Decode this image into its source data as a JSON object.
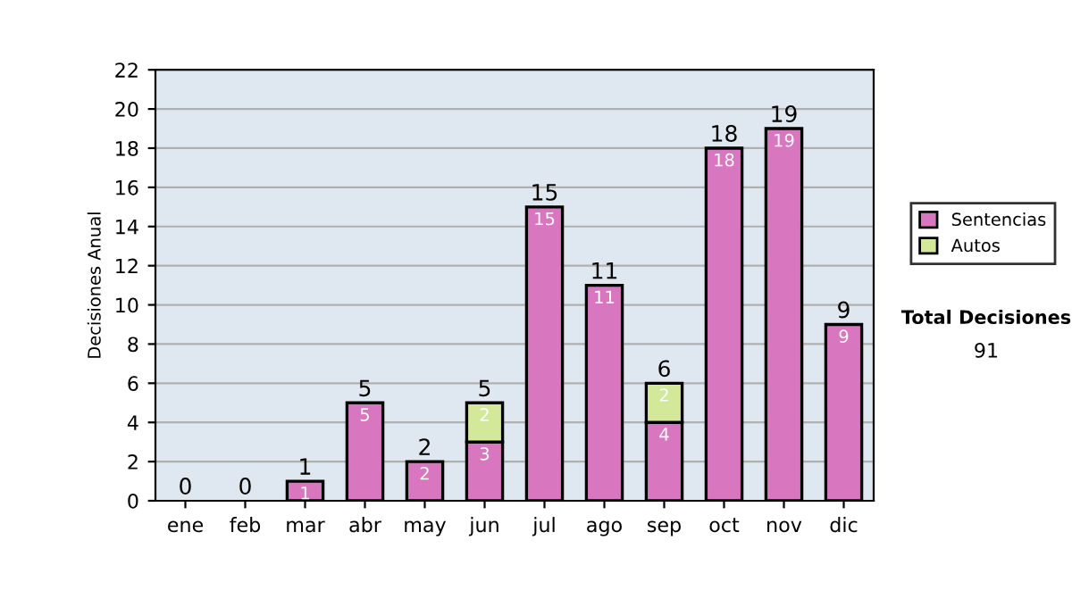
{
  "chart_data": {
    "type": "bar",
    "ylabel": "Decisiones Anual",
    "categories": [
      "ene",
      "feb",
      "mar",
      "abr",
      "may",
      "jun",
      "jul",
      "ago",
      "sep",
      "oct",
      "nov",
      "dic"
    ],
    "stacked": true,
    "series": [
      {
        "name": "Sentencias",
        "color": "#d877c0",
        "values": [
          0,
          0,
          1,
          5,
          2,
          3,
          15,
          11,
          4,
          18,
          19,
          9
        ],
        "value_labels": [
          null,
          null,
          "1",
          "5",
          "2",
          "3",
          "15",
          "11",
          "4",
          "18",
          "19",
          "9"
        ]
      },
      {
        "name": "Autos",
        "color": "#d4e89a",
        "values": [
          0,
          0,
          0,
          0,
          0,
          2,
          0,
          0,
          2,
          0,
          0,
          0
        ],
        "value_labels": [
          null,
          null,
          null,
          null,
          null,
          "2",
          null,
          null,
          "2",
          null,
          null,
          null
        ]
      }
    ],
    "totals": [
      "0",
      "0",
      "1",
      "5",
      "2",
      "5",
      "15",
      "11",
      "6",
      "18",
      "19",
      "9"
    ],
    "ylim": [
      0,
      22
    ],
    "yticks": [
      0,
      2,
      4,
      6,
      8,
      10,
      12,
      14,
      16,
      18,
      20,
      22
    ],
    "grid": "y",
    "legend": "right",
    "annotations": [
      "Total Decisiones",
      "91"
    ]
  }
}
